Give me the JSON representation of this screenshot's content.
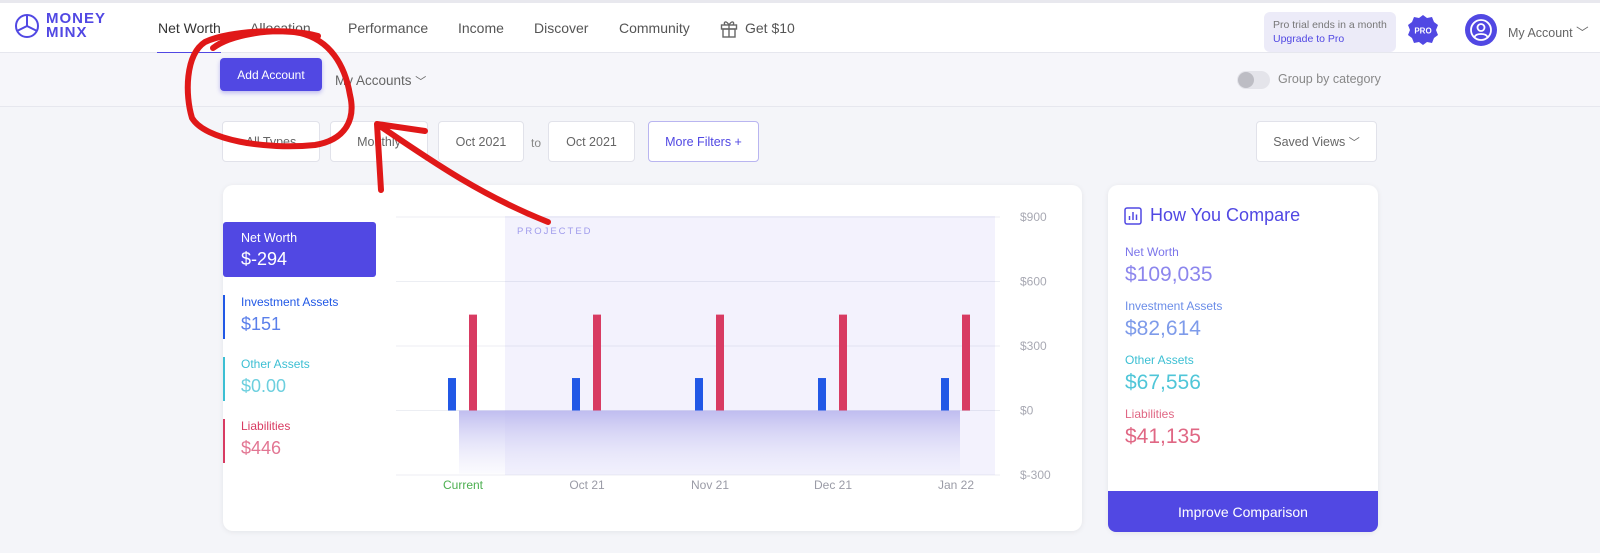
{
  "brand": {
    "line1": "MONEY",
    "line2": "MINX"
  },
  "nav": {
    "net_worth": "Net Worth",
    "allocation": "Allocation",
    "performance": "Performance",
    "income": "Income",
    "discover": "Discover",
    "community": "Community",
    "get10": "Get $10"
  },
  "trial": {
    "line1": "Pro trial ends in a month",
    "line2": "Upgrade to Pro"
  },
  "pro_badge": "PRO",
  "account_menu": "My Account",
  "subbar": {
    "add_account": "Add Account",
    "my_accounts": "My Accounts",
    "group_by": "Group by category"
  },
  "filters": {
    "all_types": "All Types",
    "monthly": "Monthly",
    "from": "Oct 2021",
    "to_label": "to",
    "to": "Oct 2021",
    "more": "More Filters +",
    "saved_views": "Saved Views"
  },
  "summary": {
    "net_worth": {
      "label": "Net Worth",
      "value": "$-294"
    },
    "investment": {
      "label": "Investment Assets",
      "value": "$151"
    },
    "other": {
      "label": "Other Assets",
      "value": "$0.00"
    },
    "liabilities": {
      "label": "Liabilities",
      "value": "$446"
    }
  },
  "colors": {
    "accent": "#5148e3",
    "investment": "#2158e6",
    "other": "#3cbfd3",
    "liabilities": "#d83b62",
    "current": "#4caf50"
  },
  "chart_data": {
    "type": "bar",
    "categories": [
      "Current",
      "Oct 21",
      "Nov 21",
      "Dec 21",
      "Jan 22"
    ],
    "series": [
      {
        "values": [
          151,
          151,
          151,
          151,
          151
        ]
      },
      {
        "values": [
          446,
          446,
          446,
          446,
          446
        ]
      }
    ],
    "yticks": [
      "$900",
      "$600",
      "$300",
      "$0",
      "$-300"
    ],
    "ytick_values": [
      900,
      600,
      300,
      0,
      -300
    ],
    "ylim": [
      -300,
      900
    ],
    "projected_label": "PROJECTED",
    "projected_from": "Oct 21",
    "net_worth_values": [
      -294,
      -294,
      -294,
      -294,
      -294
    ]
  },
  "compare": {
    "title": "How You Compare",
    "stats": [
      {
        "label": "Net Worth",
        "value": "$109,035"
      },
      {
        "label": "Investment Assets",
        "value": "$82,614"
      },
      {
        "label": "Other Assets",
        "value": "$67,556"
      },
      {
        "label": "Liabilities",
        "value": "$41,135"
      }
    ],
    "button": "Improve Comparison"
  }
}
